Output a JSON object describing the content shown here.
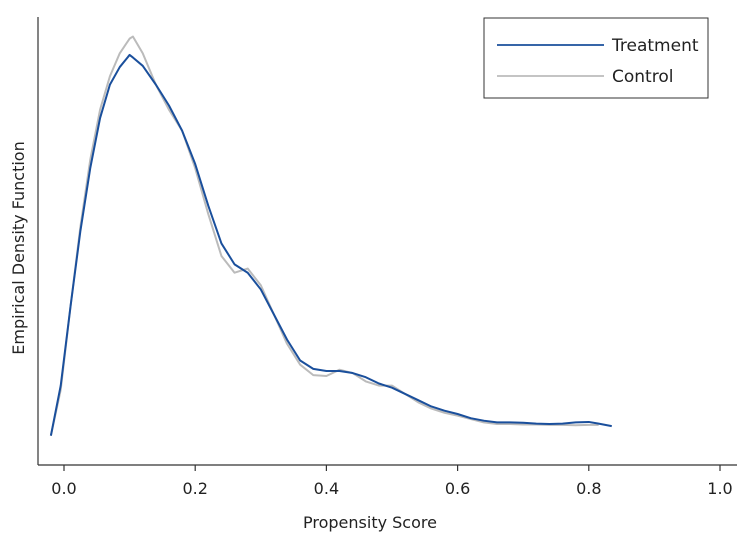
{
  "chart_data": {
    "type": "line",
    "title": "",
    "xlabel": "Propensity Score",
    "ylabel": "Empirical Density Function",
    "xlim": [
      -0.03,
      1.0
    ],
    "ylim": [
      0,
      1.0
    ],
    "xticks": [
      "0.0",
      "0.2",
      "0.4",
      "0.6",
      "0.8",
      "1.0"
    ],
    "xtick_values": [
      0.0,
      0.2,
      0.4,
      0.6,
      0.8,
      1.0
    ],
    "yticks": [],
    "grid": false,
    "legend_position": "top-right",
    "series": [
      {
        "name": "Treatment",
        "color": "#1a4f9c",
        "x": [
          -0.02,
          -0.005,
          0.01,
          0.025,
          0.04,
          0.055,
          0.07,
          0.085,
          0.1,
          0.105,
          0.12,
          0.14,
          0.16,
          0.18,
          0.2,
          0.22,
          0.24,
          0.26,
          0.28,
          0.3,
          0.32,
          0.34,
          0.36,
          0.38,
          0.4,
          0.42,
          0.44,
          0.46,
          0.48,
          0.5,
          0.52,
          0.54,
          0.56,
          0.58,
          0.6,
          0.62,
          0.64,
          0.66,
          0.68,
          0.7,
          0.72,
          0.74,
          0.76,
          0.78,
          0.8,
          0.815,
          0.835
        ],
        "y": [
          0.07,
          0.19,
          0.38,
          0.56,
          0.71,
          0.83,
          0.91,
          0.952,
          0.981,
          0.975,
          0.955,
          0.91,
          0.86,
          0.8,
          0.72,
          0.62,
          0.53,
          0.48,
          0.46,
          0.42,
          0.36,
          0.3,
          0.25,
          0.23,
          0.225,
          0.225,
          0.22,
          0.21,
          0.195,
          0.185,
          0.17,
          0.155,
          0.14,
          0.13,
          0.122,
          0.112,
          0.106,
          0.102,
          0.102,
          0.101,
          0.099,
          0.098,
          0.099,
          0.102,
          0.103,
          0.099,
          0.093
        ]
      },
      {
        "name": "Control",
        "color": "#bbbbbb",
        "x": [
          -0.02,
          -0.005,
          0.01,
          0.025,
          0.04,
          0.055,
          0.07,
          0.085,
          0.1,
          0.105,
          0.12,
          0.14,
          0.16,
          0.18,
          0.2,
          0.22,
          0.24,
          0.26,
          0.28,
          0.3,
          0.32,
          0.34,
          0.36,
          0.38,
          0.4,
          0.42,
          0.44,
          0.46,
          0.48,
          0.5,
          0.52,
          0.54,
          0.56,
          0.58,
          0.6,
          0.62,
          0.64,
          0.66,
          0.68,
          0.7,
          0.72,
          0.74,
          0.76,
          0.78,
          0.8,
          0.815
        ],
        "y": [
          0.07,
          0.18,
          0.38,
          0.57,
          0.73,
          0.85,
          0.93,
          0.985,
          1.02,
          1.025,
          0.985,
          0.91,
          0.85,
          0.8,
          0.71,
          0.6,
          0.5,
          0.46,
          0.47,
          0.43,
          0.36,
          0.29,
          0.24,
          0.215,
          0.213,
          0.228,
          0.22,
          0.2,
          0.19,
          0.19,
          0.17,
          0.15,
          0.135,
          0.125,
          0.118,
          0.11,
          0.102,
          0.098,
          0.098,
          0.097,
          0.097,
          0.096,
          0.096,
          0.095,
          0.096,
          0.096
        ]
      }
    ]
  }
}
